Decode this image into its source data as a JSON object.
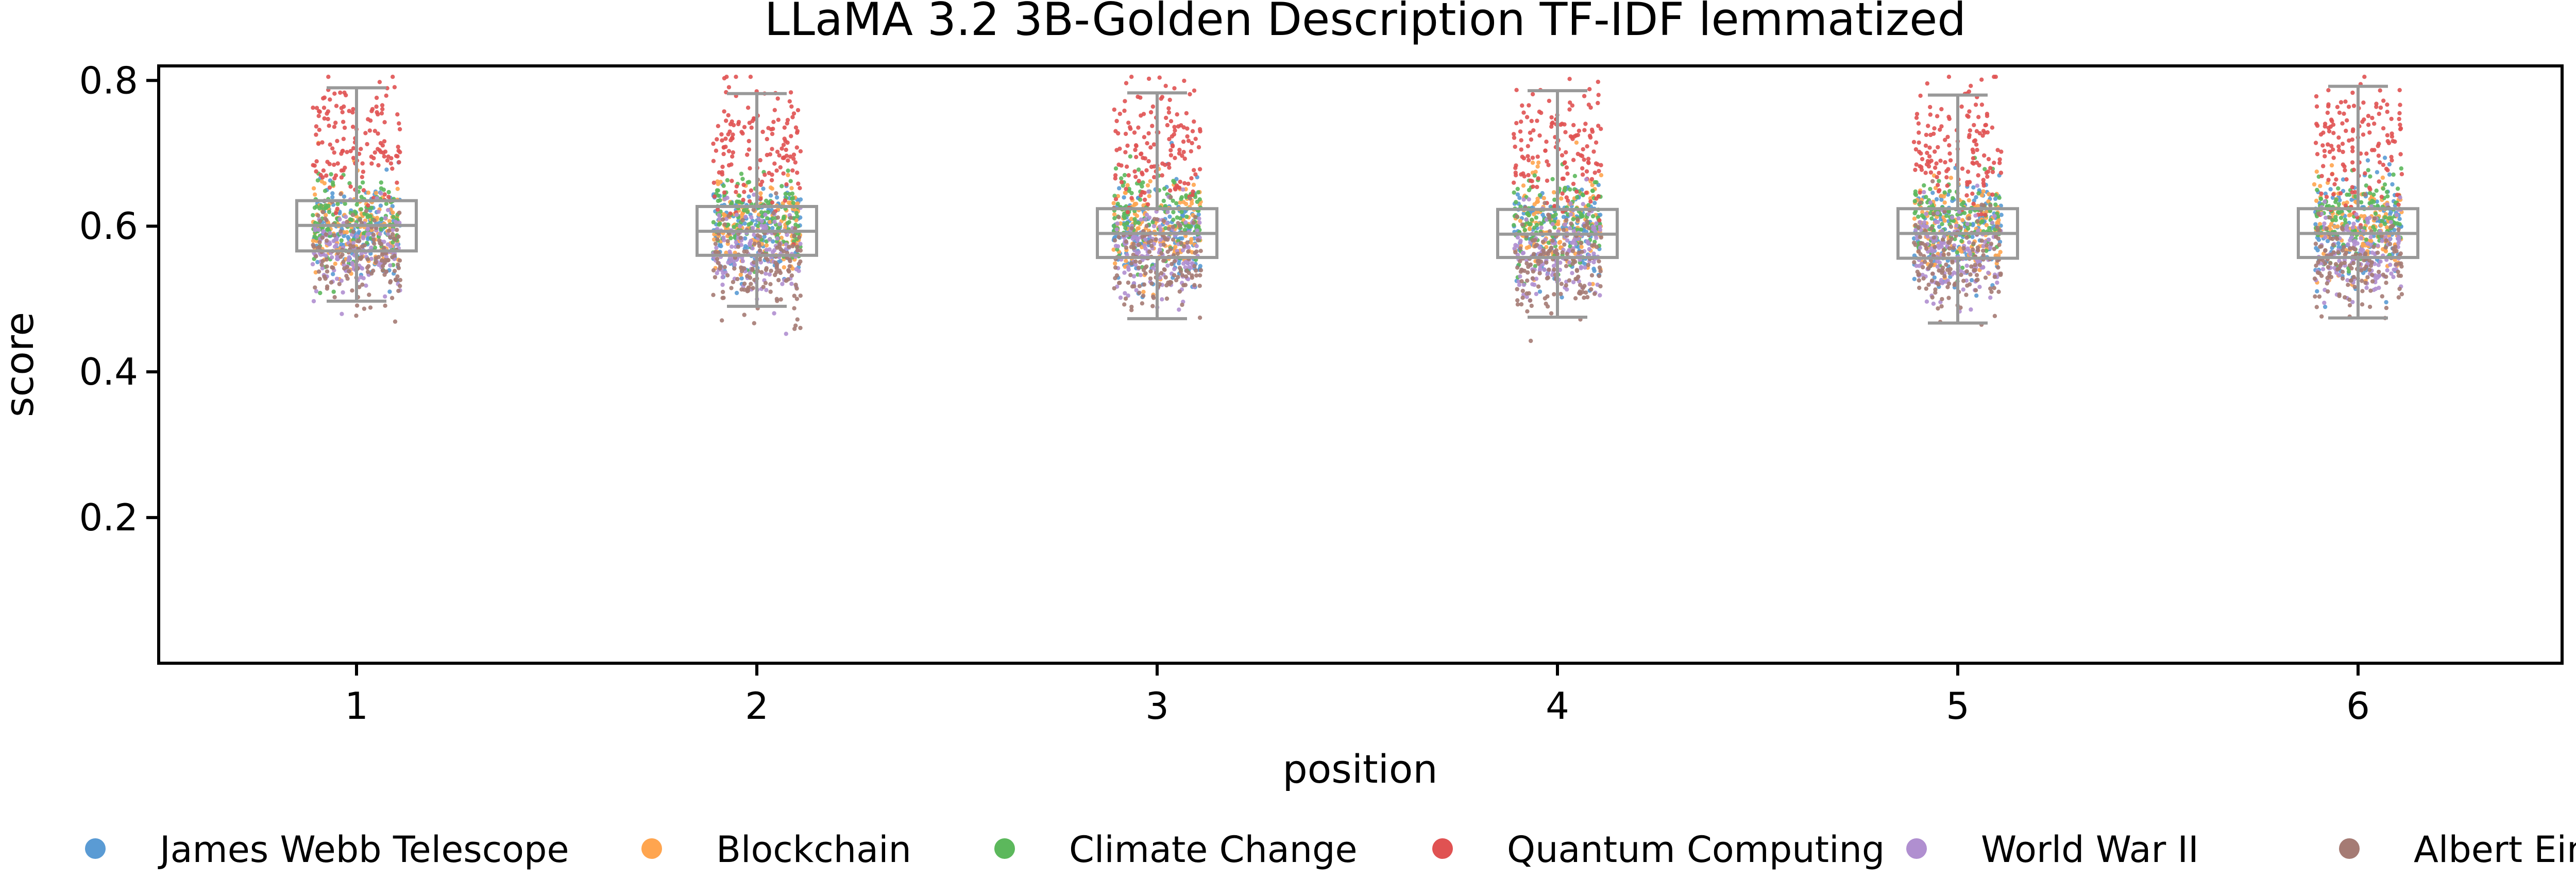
{
  "chart_data": {
    "type": "box-strip",
    "title": "LLaMA 3.2 3B-Golden Description TF-IDF lemmatized",
    "xlabel": "position",
    "ylabel": "score",
    "categories": [
      "1",
      "2",
      "3",
      "4",
      "5",
      "6"
    ],
    "ylim": [
      0.0,
      0.82
    ],
    "yticks": [
      0.2,
      0.4,
      0.6,
      0.8
    ],
    "ytick_labels": [
      "0.2",
      "0.4",
      "0.6",
      "0.8"
    ],
    "grid": false,
    "legend_position": "bottom",
    "box_color": "#999999",
    "boxes": [
      {
        "position": "1",
        "q1": 0.566,
        "median": 0.601,
        "q3": 0.635,
        "whisker_low": 0.497,
        "whisker_high": 0.79
      },
      {
        "position": "2",
        "q1": 0.56,
        "median": 0.593,
        "q3": 0.627,
        "whisker_low": 0.49,
        "whisker_high": 0.782
      },
      {
        "position": "3",
        "q1": 0.557,
        "median": 0.59,
        "q3": 0.624,
        "whisker_low": 0.473,
        "whisker_high": 0.783
      },
      {
        "position": "4",
        "q1": 0.557,
        "median": 0.589,
        "q3": 0.623,
        "whisker_low": 0.475,
        "whisker_high": 0.786
      },
      {
        "position": "5",
        "q1": 0.556,
        "median": 0.59,
        "q3": 0.624,
        "whisker_low": 0.467,
        "whisker_high": 0.78
      },
      {
        "position": "6",
        "q1": 0.557,
        "median": 0.59,
        "q3": 0.624,
        "whisker_low": 0.474,
        "whisker_high": 0.792
      }
    ],
    "series": [
      {
        "name": "James Webb Telescope",
        "color": "#5a9bd4",
        "approx_center": 0.595,
        "approx_spread": 0.035
      },
      {
        "name": "Blockchain",
        "color": "#ffa54f",
        "approx_center": 0.6,
        "approx_spread": 0.03
      },
      {
        "name": "Climate Change",
        "color": "#5cb85c",
        "approx_center": 0.61,
        "approx_spread": 0.03
      },
      {
        "name": "Quantum Computing",
        "color": "#e05252",
        "approx_center": 0.71,
        "approx_spread": 0.045
      },
      {
        "name": "World War II",
        "color": "#b08fd0",
        "approx_center": 0.565,
        "approx_spread": 0.03
      },
      {
        "name": "Albert Einstein",
        "color": "#a57b74",
        "approx_center": 0.55,
        "approx_spread": 0.035
      }
    ]
  }
}
